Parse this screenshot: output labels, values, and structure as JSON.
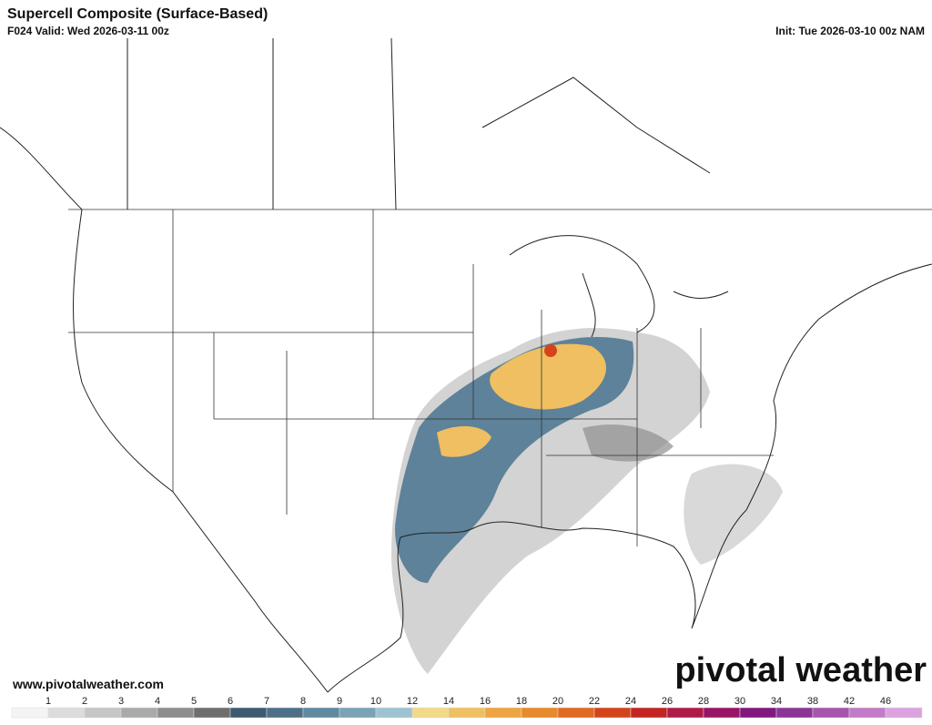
{
  "header": {
    "title": "Supercell Composite (Surface-Based)",
    "valid": "F024 Valid: Wed 2026-03-11 00z",
    "init": "Init: Tue 2026-03-10 00z NAM"
  },
  "footer": {
    "website": "www.pivotalweather.com",
    "logo": "pivotal weather"
  },
  "colorbar": {
    "labels": [
      "1",
      "2",
      "3",
      "4",
      "5",
      "6",
      "7",
      "8",
      "9",
      "10",
      "12",
      "14",
      "16",
      "18",
      "20",
      "22",
      "24",
      "26",
      "28",
      "30",
      "34",
      "38",
      "42",
      "46"
    ],
    "colors": [
      "#f4f4f4",
      "#dcdcdc",
      "#c6c6c6",
      "#aaaaaa",
      "#8e8e8e",
      "#6e6e6e",
      "#3e5a70",
      "#4d7088",
      "#6189a0",
      "#7aa3b8",
      "#9dc3d2",
      "#f2d98a",
      "#efc062",
      "#eda441",
      "#e88a2c",
      "#e06a22",
      "#d4441c",
      "#c42424",
      "#b01a48",
      "#9a1466",
      "#82177f",
      "#8c3596",
      "#a655ad",
      "#c27bc8",
      "#dca2e0"
    ]
  }
}
